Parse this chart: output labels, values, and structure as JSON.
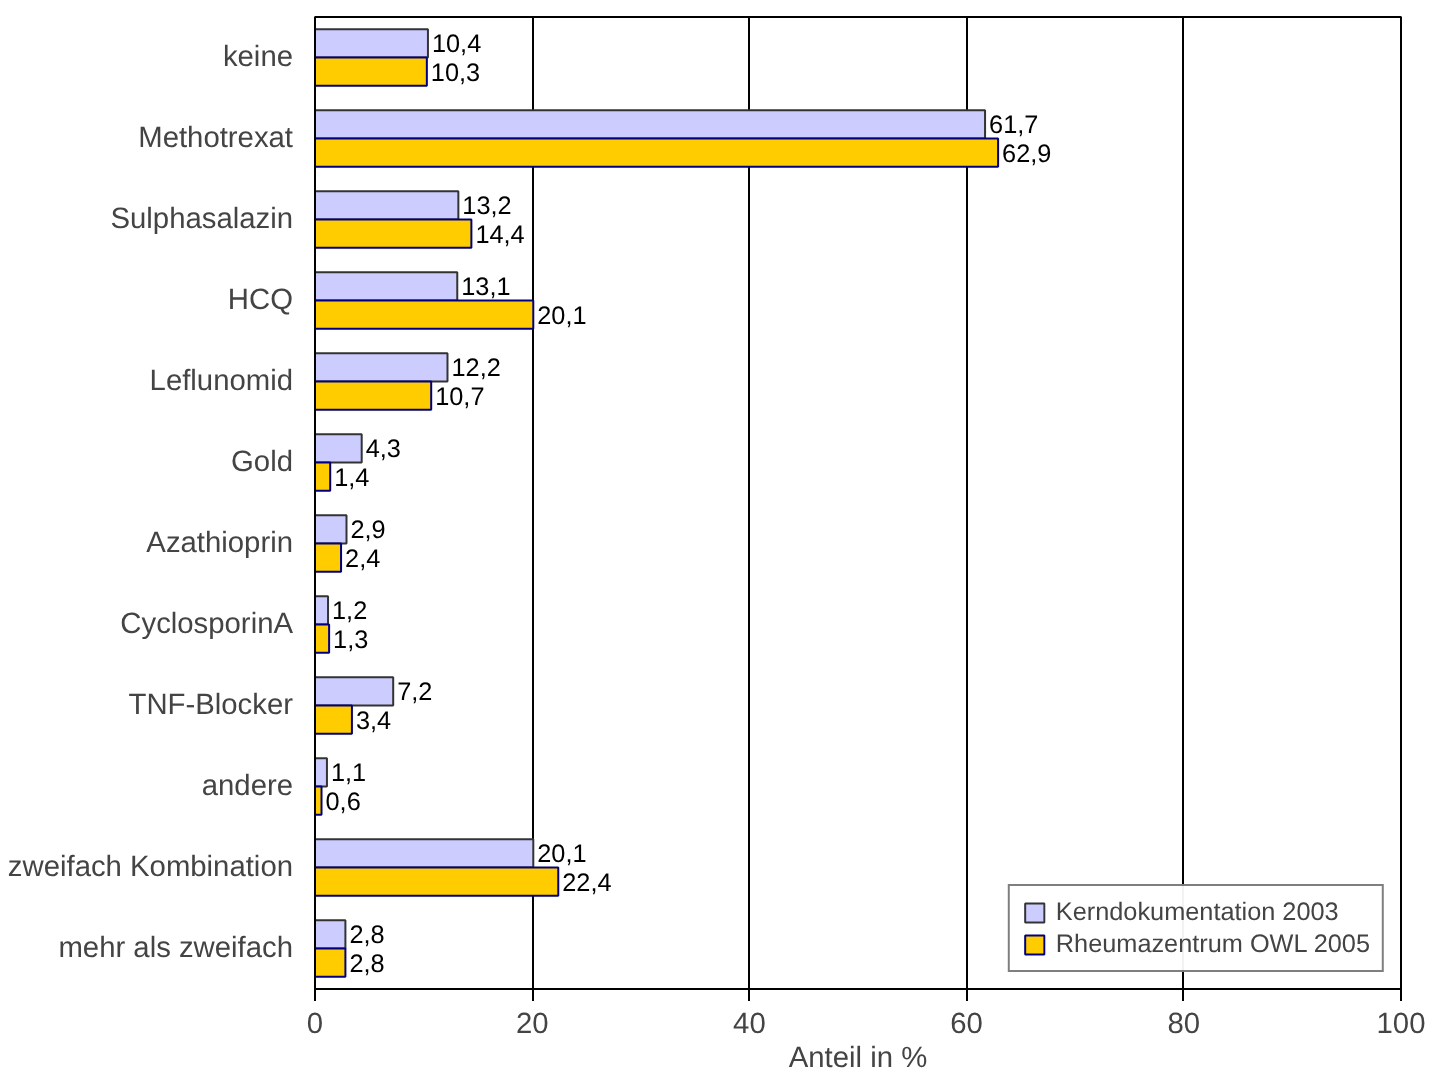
{
  "chart_data": {
    "type": "bar",
    "orientation": "horizontal",
    "xlabel": "Anteil in %",
    "categories": [
      "keine",
      "Methotrexat",
      "Sulphasalazin",
      "HCQ",
      "Leflunomid",
      "Gold",
      "Azathioprin",
      "CyclosporinA",
      "TNF-Blocker",
      "andere",
      "zweifach Kombination",
      "mehr als zweifach"
    ],
    "series": [
      {
        "name": "Kerndokumentation 2003",
        "color": "#ccccff",
        "values": [
          10.4,
          61.7,
          13.2,
          13.1,
          12.2,
          4.3,
          2.9,
          1.2,
          7.2,
          1.1,
          20.1,
          2.8
        ],
        "value_labels": [
          "10,4",
          "61,7",
          "13,2",
          "13,1",
          "12,2",
          "4,3",
          "2,9",
          "1,2",
          "7,2",
          "1,1",
          "20,1",
          "2,8"
        ]
      },
      {
        "name": "Rheumazentrum OWL 2005",
        "color": "#ffcc00",
        "values": [
          10.3,
          62.9,
          14.4,
          20.1,
          10.7,
          1.4,
          2.4,
          1.3,
          3.4,
          0.6,
          22.4,
          2.8
        ],
        "value_labels": [
          "10,3",
          "62,9",
          "14,4",
          "20,1",
          "10,7",
          "1,4",
          "2,4",
          "1,3",
          "3,4",
          "0,6",
          "22,4",
          "2,8"
        ]
      }
    ],
    "xlim": [
      0,
      100
    ],
    "xticks": [
      0,
      20,
      40,
      60,
      80,
      100
    ],
    "grid": "x",
    "legend": "bottom right"
  }
}
